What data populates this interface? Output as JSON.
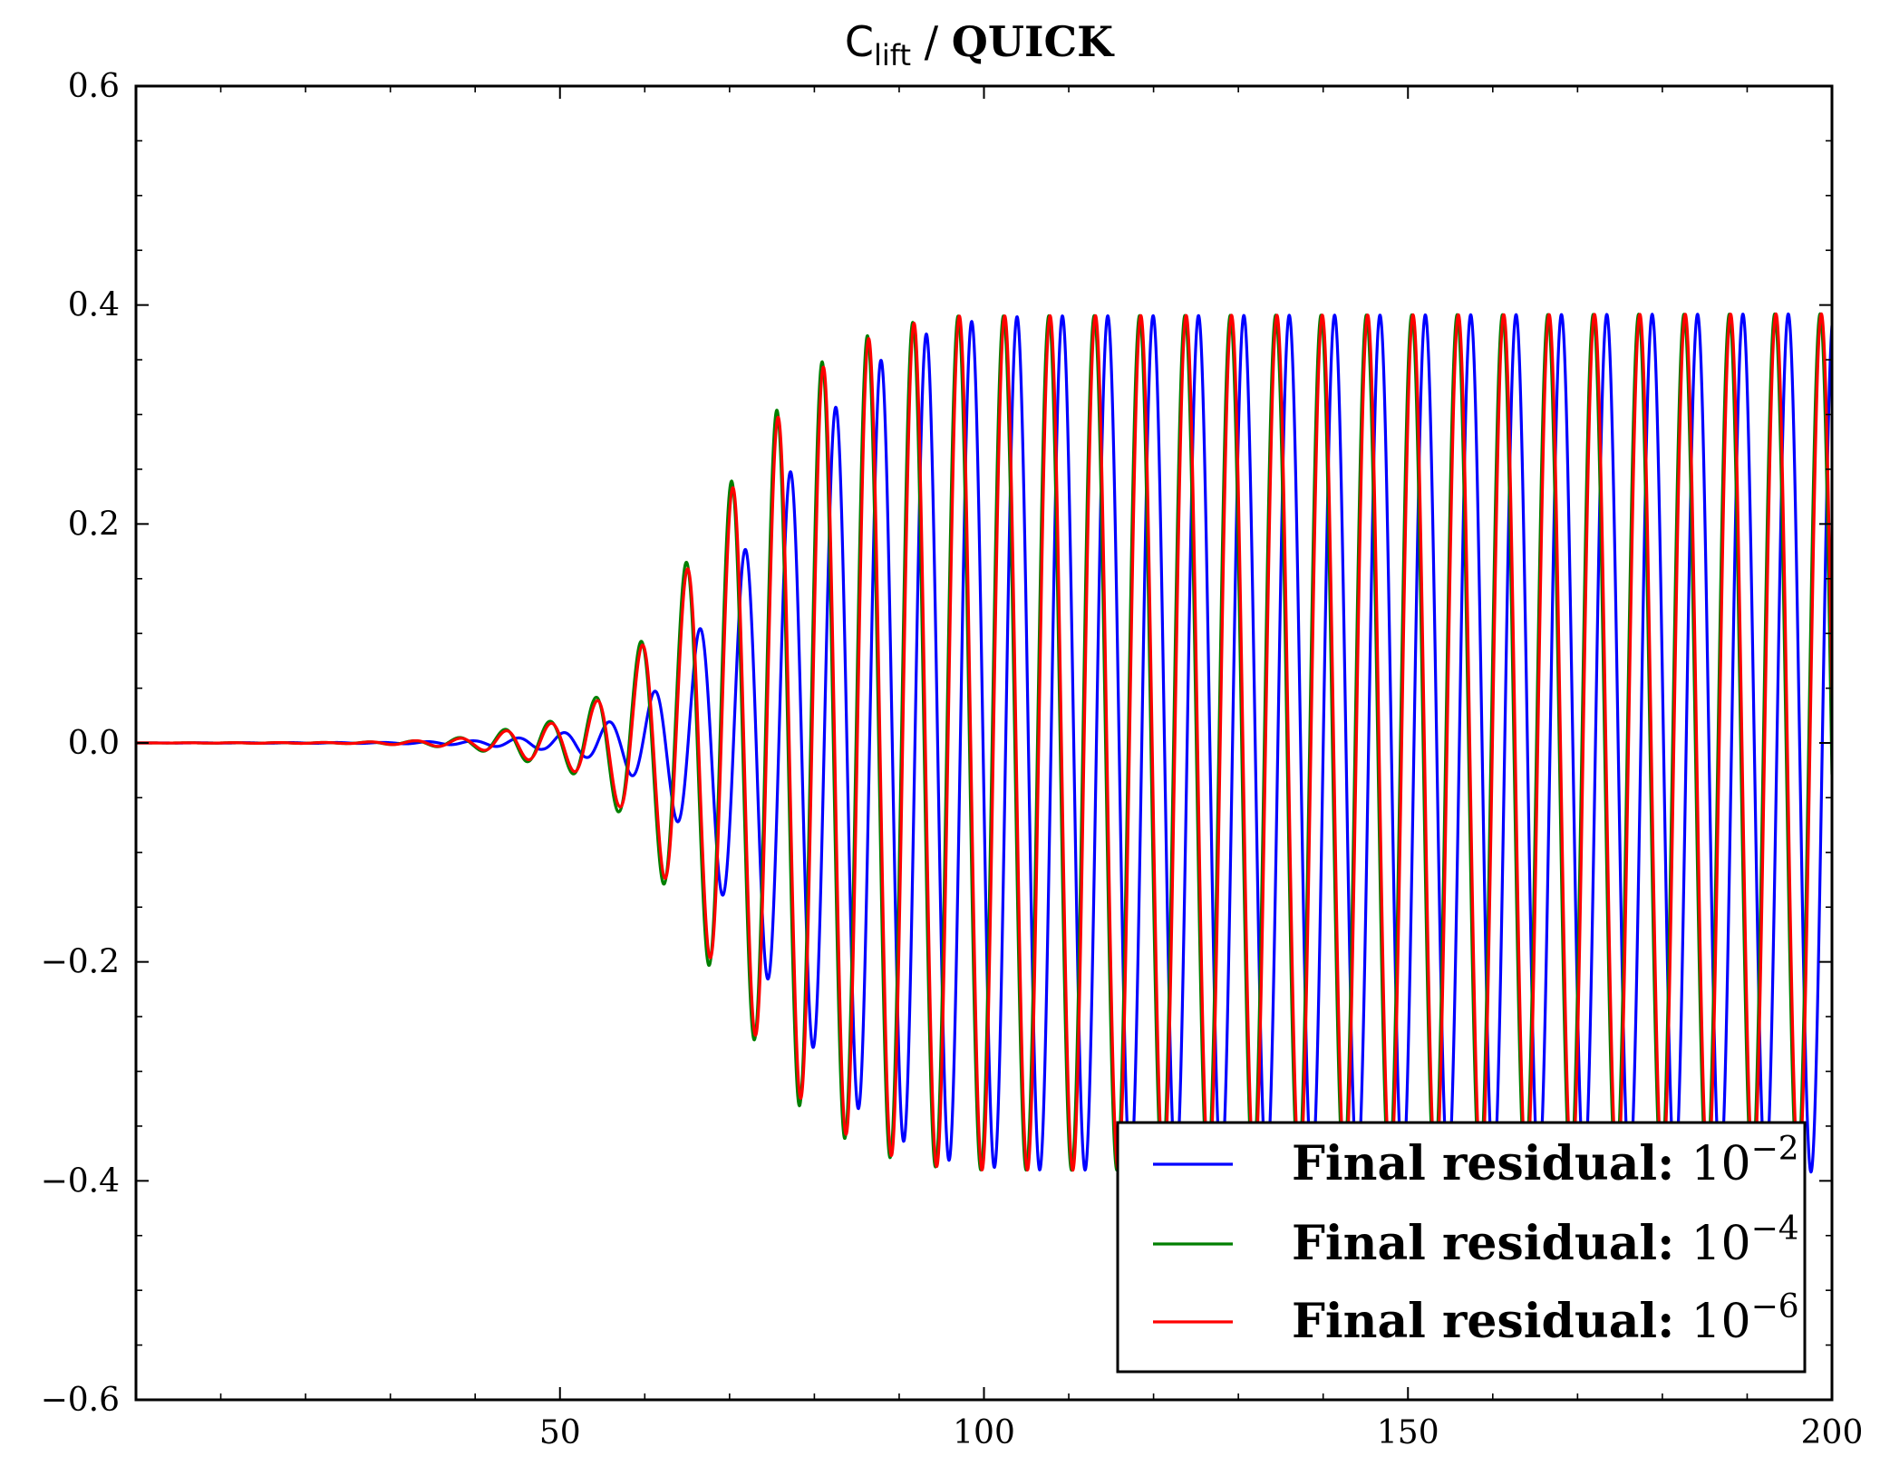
{
  "chart_data": {
    "type": "line",
    "title": {
      "symbol": "C",
      "subscript": "lift",
      "separator": " / ",
      "scheme": "QUICK"
    },
    "xlabel": "",
    "ylabel": "",
    "xlim": [
      0,
      200
    ],
    "ylim": [
      -0.6,
      0.6
    ],
    "x_ticks": [
      50,
      100,
      150,
      200
    ],
    "x_tick_labels": [
      "50",
      "100",
      "150",
      "200"
    ],
    "x_minor_ticks": [
      10,
      20,
      30,
      40,
      60,
      70,
      80,
      90,
      110,
      120,
      130,
      140,
      160,
      170,
      180,
      190
    ],
    "y_ticks": [
      0.6,
      0.4,
      0.2,
      0.0,
      -0.2,
      -0.4,
      -0.6
    ],
    "y_tick_labels": [
      "0.6",
      "0.4",
      "0.2",
      "0.0",
      "−0.2",
      "−0.4",
      "−0.6"
    ],
    "y_minor_ticks": [
      0.55,
      0.5,
      0.45,
      0.35,
      0.3,
      0.25,
      0.15,
      0.1,
      0.05,
      -0.05,
      -0.1,
      -0.15,
      -0.25,
      -0.3,
      -0.35,
      -0.45,
      -0.5,
      -0.55
    ],
    "grid": false,
    "legend_position": "bottom-right",
    "series": [
      {
        "name": "Final residual: 10^-2",
        "label_text": "Final residual: ",
        "label_base": "10",
        "label_exponent": "−2",
        "color": "#0000ff",
        "period": 5.35,
        "peak_x": 200.2,
        "amplitude": 0.392,
        "envelope": [
          [
            0,
            0.0
          ],
          [
            30,
            0.0005
          ],
          [
            40,
            0.002
          ],
          [
            48,
            0.006
          ],
          [
            53,
            0.013
          ],
          [
            57,
            0.022
          ],
          [
            60,
            0.038
          ],
          [
            63,
            0.062
          ],
          [
            66,
            0.098
          ],
          [
            70,
            0.15
          ],
          [
            75,
            0.223
          ],
          [
            80,
            0.28
          ],
          [
            85,
            0.333
          ],
          [
            90,
            0.362
          ],
          [
            95,
            0.38
          ],
          [
            100,
            0.387
          ],
          [
            105,
            0.39
          ],
          [
            200,
            0.392
          ]
        ]
      },
      {
        "name": "Final residual: 10^-4",
        "label_text": "Final residual: ",
        "label_base": "10",
        "label_exponent": "−4",
        "color": "#007f00",
        "period": 5.35,
        "peak_x": 198.6,
        "amplitude": 0.392,
        "envelope": [
          [
            0,
            0.0
          ],
          [
            25,
            0.0005
          ],
          [
            33,
            0.002
          ],
          [
            40,
            0.006
          ],
          [
            46,
            0.017
          ],
          [
            50,
            0.021
          ],
          [
            54,
            0.04
          ],
          [
            57,
            0.064
          ],
          [
            60,
            0.098
          ],
          [
            63,
            0.14
          ],
          [
            66,
            0.18
          ],
          [
            69,
            0.225
          ],
          [
            72,
            0.26
          ],
          [
            75,
            0.298
          ],
          [
            78,
            0.33
          ],
          [
            82,
            0.355
          ],
          [
            87,
            0.375
          ],
          [
            92,
            0.385
          ],
          [
            97,
            0.39
          ],
          [
            200,
            0.392
          ]
        ]
      },
      {
        "name": "Final residual: 10^-6",
        "label_text": "Final residual: ",
        "label_base": "10",
        "label_exponent": "−6",
        "color": "#ff0000",
        "period": 5.35,
        "peak_x": 198.75,
        "amplitude": 0.392,
        "envelope": [
          [
            0,
            0.0
          ],
          [
            25,
            0.0005
          ],
          [
            33,
            0.002
          ],
          [
            40,
            0.005
          ],
          [
            46,
            0.015
          ],
          [
            50,
            0.019
          ],
          [
            54,
            0.036
          ],
          [
            57,
            0.058
          ],
          [
            60,
            0.093
          ],
          [
            63,
            0.132
          ],
          [
            66,
            0.172
          ],
          [
            69,
            0.215
          ],
          [
            72,
            0.255
          ],
          [
            75,
            0.29
          ],
          [
            78,
            0.322
          ],
          [
            82,
            0.35
          ],
          [
            87,
            0.372
          ],
          [
            92,
            0.384
          ],
          [
            97,
            0.39
          ],
          [
            200,
            0.392
          ]
        ]
      }
    ]
  }
}
